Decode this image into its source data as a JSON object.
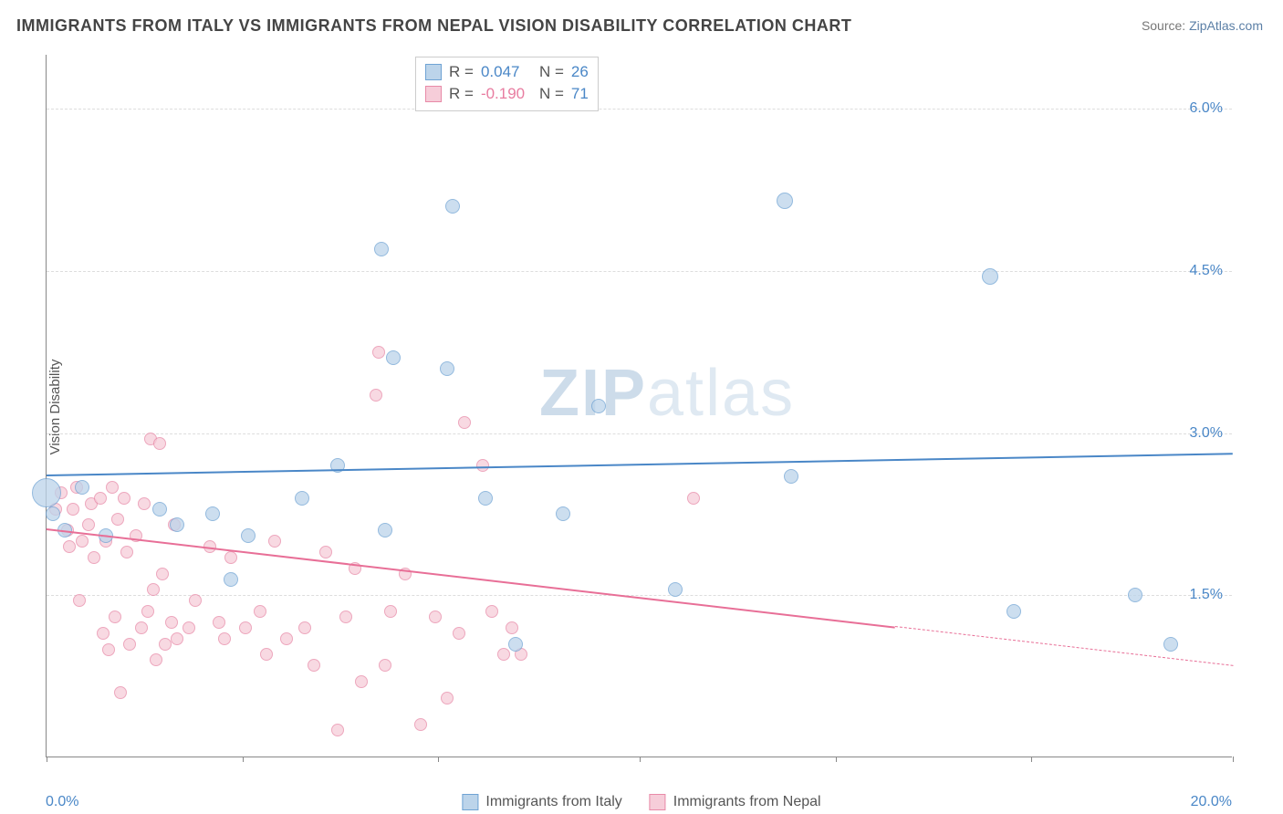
{
  "title": "IMMIGRANTS FROM ITALY VS IMMIGRANTS FROM NEPAL VISION DISABILITY CORRELATION CHART",
  "source_prefix": "Source: ",
  "source_name": "ZipAtlas.com",
  "ylabel": "Vision Disability",
  "watermark_a": "ZIP",
  "watermark_b": "atlas",
  "chart": {
    "type": "scatter",
    "background_color": "#ffffff",
    "grid_color": "#dddddd",
    "axis_color": "#888888",
    "xlim": [
      0,
      20
    ],
    "ylim": [
      0,
      6.5
    ],
    "xtick_positions": [
      0,
      3.3,
      6.6,
      10,
      13.3,
      16.6,
      20
    ],
    "xaxis_min_label": "0.0%",
    "xaxis_max_label": "20.0%",
    "ygrid": [
      {
        "y": 1.5,
        "label": "1.5%"
      },
      {
        "y": 3.0,
        "label": "3.0%"
      },
      {
        "y": 4.5,
        "label": "4.5%"
      },
      {
        "y": 6.0,
        "label": "6.0%"
      }
    ],
    "series": [
      {
        "name": "Immigrants from Italy",
        "key": "italy",
        "marker_fill": "#bcd4ea",
        "marker_stroke": "#6fa3d4",
        "marker_opacity": 0.75,
        "line_color": "#4a87c7",
        "r_value": "0.047",
        "n_value": "26",
        "trend": {
          "x1": 0,
          "y1": 2.62,
          "x2": 20,
          "y2": 2.82,
          "solid_until_x": 20
        },
        "points": [
          {
            "x": 0.0,
            "y": 2.45,
            "r": 16
          },
          {
            "x": 0.1,
            "y": 2.25,
            "r": 8
          },
          {
            "x": 0.3,
            "y": 2.1,
            "r": 8
          },
          {
            "x": 0.6,
            "y": 2.5,
            "r": 8
          },
          {
            "x": 1.0,
            "y": 2.05,
            "r": 8
          },
          {
            "x": 1.9,
            "y": 2.3,
            "r": 8
          },
          {
            "x": 2.2,
            "y": 2.15,
            "r": 8
          },
          {
            "x": 2.8,
            "y": 2.25,
            "r": 8
          },
          {
            "x": 3.1,
            "y": 1.65,
            "r": 8
          },
          {
            "x": 3.4,
            "y": 2.05,
            "r": 8
          },
          {
            "x": 4.3,
            "y": 2.4,
            "r": 8
          },
          {
            "x": 4.9,
            "y": 2.7,
            "r": 8
          },
          {
            "x": 5.7,
            "y": 2.1,
            "r": 8
          },
          {
            "x": 5.65,
            "y": 4.7,
            "r": 8
          },
          {
            "x": 5.85,
            "y": 3.7,
            "r": 8
          },
          {
            "x": 6.75,
            "y": 3.6,
            "r": 8
          },
          {
            "x": 6.85,
            "y": 5.1,
            "r": 8
          },
          {
            "x": 7.4,
            "y": 2.4,
            "r": 8
          },
          {
            "x": 7.9,
            "y": 1.05,
            "r": 8
          },
          {
            "x": 8.7,
            "y": 2.25,
            "r": 8
          },
          {
            "x": 9.3,
            "y": 3.25,
            "r": 8
          },
          {
            "x": 10.6,
            "y": 1.55,
            "r": 8
          },
          {
            "x": 12.45,
            "y": 5.15,
            "r": 9
          },
          {
            "x": 12.55,
            "y": 2.6,
            "r": 8
          },
          {
            "x": 15.9,
            "y": 4.45,
            "r": 9
          },
          {
            "x": 16.3,
            "y": 1.35,
            "r": 8
          },
          {
            "x": 18.35,
            "y": 1.5,
            "r": 8
          },
          {
            "x": 18.95,
            "y": 1.05,
            "r": 8
          }
        ]
      },
      {
        "name": "Immigrants from Nepal",
        "key": "nepal",
        "marker_fill": "#f6cdd9",
        "marker_stroke": "#e88aa8",
        "marker_opacity": 0.75,
        "line_color": "#e86f97",
        "r_value": "-0.190",
        "n_value": "71",
        "trend": {
          "x1": 0,
          "y1": 2.12,
          "x2": 20,
          "y2": 0.85,
          "solid_until_x": 14.3
        },
        "points": [
          {
            "x": 0.15,
            "y": 2.3,
            "r": 7
          },
          {
            "x": 0.25,
            "y": 2.45,
            "r": 7
          },
          {
            "x": 0.35,
            "y": 2.1,
            "r": 7
          },
          {
            "x": 0.38,
            "y": 1.95,
            "r": 7
          },
          {
            "x": 0.45,
            "y": 2.3,
            "r": 7
          },
          {
            "x": 0.5,
            "y": 2.5,
            "r": 7
          },
          {
            "x": 0.55,
            "y": 1.45,
            "r": 7
          },
          {
            "x": 0.6,
            "y": 2.0,
            "r": 7
          },
          {
            "x": 0.7,
            "y": 2.15,
            "r": 7
          },
          {
            "x": 0.75,
            "y": 2.35,
            "r": 7
          },
          {
            "x": 0.8,
            "y": 1.85,
            "r": 7
          },
          {
            "x": 0.9,
            "y": 2.4,
            "r": 7
          },
          {
            "x": 0.95,
            "y": 1.15,
            "r": 7
          },
          {
            "x": 1.0,
            "y": 2.0,
            "r": 7
          },
          {
            "x": 1.05,
            "y": 1.0,
            "r": 7
          },
          {
            "x": 1.1,
            "y": 2.5,
            "r": 7
          },
          {
            "x": 1.15,
            "y": 1.3,
            "r": 7
          },
          {
            "x": 1.2,
            "y": 2.2,
            "r": 7
          },
          {
            "x": 1.25,
            "y": 0.6,
            "r": 7
          },
          {
            "x": 1.3,
            "y": 2.4,
            "r": 7
          },
          {
            "x": 1.35,
            "y": 1.9,
            "r": 7
          },
          {
            "x": 1.4,
            "y": 1.05,
            "r": 7
          },
          {
            "x": 1.5,
            "y": 2.05,
            "r": 7
          },
          {
            "x": 1.6,
            "y": 1.2,
            "r": 7
          },
          {
            "x": 1.65,
            "y": 2.35,
            "r": 7
          },
          {
            "x": 1.7,
            "y": 1.35,
            "r": 7
          },
          {
            "x": 1.75,
            "y": 2.95,
            "r": 7
          },
          {
            "x": 1.8,
            "y": 1.55,
            "r": 7
          },
          {
            "x": 1.85,
            "y": 0.9,
            "r": 7
          },
          {
            "x": 1.9,
            "y": 2.9,
            "r": 7
          },
          {
            "x": 1.95,
            "y": 1.7,
            "r": 7
          },
          {
            "x": 2.0,
            "y": 1.05,
            "r": 7
          },
          {
            "x": 2.1,
            "y": 1.25,
            "r": 7
          },
          {
            "x": 2.15,
            "y": 2.15,
            "r": 7
          },
          {
            "x": 2.2,
            "y": 1.1,
            "r": 7
          },
          {
            "x": 2.4,
            "y": 1.2,
            "r": 7
          },
          {
            "x": 2.5,
            "y": 1.45,
            "r": 7
          },
          {
            "x": 2.75,
            "y": 1.95,
            "r": 7
          },
          {
            "x": 2.9,
            "y": 1.25,
            "r": 7
          },
          {
            "x": 3.0,
            "y": 1.1,
            "r": 7
          },
          {
            "x": 3.1,
            "y": 1.85,
            "r": 7
          },
          {
            "x": 3.35,
            "y": 1.2,
            "r": 7
          },
          {
            "x": 3.6,
            "y": 1.35,
            "r": 7
          },
          {
            "x": 3.7,
            "y": 0.95,
            "r": 7
          },
          {
            "x": 3.85,
            "y": 2.0,
            "r": 7
          },
          {
            "x": 4.05,
            "y": 1.1,
            "r": 7
          },
          {
            "x": 4.35,
            "y": 1.2,
            "r": 7
          },
          {
            "x": 4.5,
            "y": 0.85,
            "r": 7
          },
          {
            "x": 4.7,
            "y": 1.9,
            "r": 7
          },
          {
            "x": 4.9,
            "y": 0.25,
            "r": 7
          },
          {
            "x": 5.05,
            "y": 1.3,
            "r": 7
          },
          {
            "x": 5.2,
            "y": 1.75,
            "r": 7
          },
          {
            "x": 5.3,
            "y": 0.7,
            "r": 7
          },
          {
            "x": 5.55,
            "y": 3.35,
            "r": 7
          },
          {
            "x": 5.6,
            "y": 3.75,
            "r": 7
          },
          {
            "x": 5.7,
            "y": 0.85,
            "r": 7
          },
          {
            "x": 5.8,
            "y": 1.35,
            "r": 7
          },
          {
            "x": 6.05,
            "y": 1.7,
            "r": 7
          },
          {
            "x": 6.3,
            "y": 0.3,
            "r": 7
          },
          {
            "x": 6.55,
            "y": 1.3,
            "r": 7
          },
          {
            "x": 6.75,
            "y": 0.55,
            "r": 7
          },
          {
            "x": 6.95,
            "y": 1.15,
            "r": 7
          },
          {
            "x": 7.05,
            "y": 3.1,
            "r": 7
          },
          {
            "x": 7.35,
            "y": 2.7,
            "r": 7
          },
          {
            "x": 7.5,
            "y": 1.35,
            "r": 7
          },
          {
            "x": 7.7,
            "y": 0.95,
            "r": 7
          },
          {
            "x": 7.85,
            "y": 1.2,
            "r": 7
          },
          {
            "x": 8.0,
            "y": 0.95,
            "r": 7
          },
          {
            "x": 10.9,
            "y": 2.4,
            "r": 7
          }
        ]
      }
    ]
  },
  "legend_series": [
    {
      "label": "Immigrants from Italy",
      "fill": "#bcd4ea",
      "stroke": "#6fa3d4"
    },
    {
      "label": "Immigrants from Nepal",
      "fill": "#f6cdd9",
      "stroke": "#e88aa8"
    }
  ]
}
